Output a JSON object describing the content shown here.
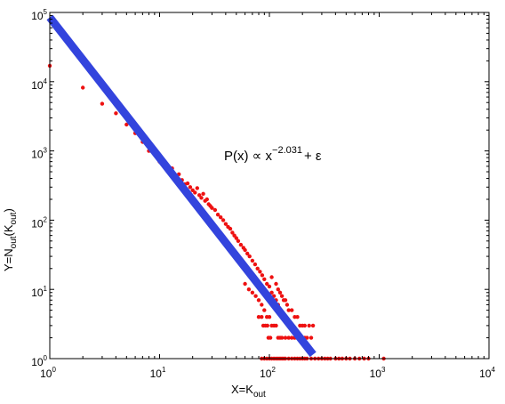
{
  "chart_data": {
    "type": "scatter",
    "title": "",
    "xlabel": {
      "base": "X=K",
      "sub": "out"
    },
    "ylabel": {
      "prefix": "Y=N",
      "sub1": "out",
      "mid": "(K",
      "sub2": "out",
      "suffix": ")"
    },
    "x_scale": "log",
    "y_scale": "log",
    "xlim": [
      1,
      10000
    ],
    "ylim": [
      1,
      100000
    ],
    "grid": false,
    "legend": "none",
    "x_ticks": [
      {
        "value": 1,
        "base": "10",
        "exp": "0"
      },
      {
        "value": 10,
        "base": "10",
        "exp": "1"
      },
      {
        "value": 100,
        "base": "10",
        "exp": "2"
      },
      {
        "value": 1000,
        "base": "10",
        "exp": "3"
      },
      {
        "value": 10000,
        "base": "10",
        "exp": "4"
      }
    ],
    "y_ticks": [
      {
        "value": 1,
        "base": "10",
        "exp": "0"
      },
      {
        "value": 10,
        "base": "10",
        "exp": "1"
      },
      {
        "value": 100,
        "base": "10",
        "exp": "2"
      },
      {
        "value": 1000,
        "base": "10",
        "exp": "3"
      },
      {
        "value": 10000,
        "base": "10",
        "exp": "4"
      },
      {
        "value": 100000,
        "base": "10",
        "exp": "5"
      }
    ],
    "annotation": {
      "lhs": "P(x) ∝ x",
      "exp": "−2.031",
      "rhs": "+ ε"
    },
    "fit_line": {
      "color": "#3344dd",
      "exponent": -2.031,
      "x_range": [
        1,
        250
      ],
      "y_at_1": 85000
    },
    "points_color": "#ee1111",
    "points": [
      [
        1,
        17000
      ],
      [
        2,
        8200
      ],
      [
        3,
        4800
      ],
      [
        4,
        3500
      ],
      [
        5,
        2400
      ],
      [
        6,
        1800
      ],
      [
        7,
        1350
      ],
      [
        8,
        1000
      ],
      [
        10,
        700
      ],
      [
        12,
        520
      ],
      [
        13,
        560
      ],
      [
        14,
        400
      ],
      [
        15,
        460
      ],
      [
        16,
        380
      ],
      [
        17,
        330
      ],
      [
        18,
        340
      ],
      [
        19,
        300
      ],
      [
        20,
        270
      ],
      [
        21,
        250
      ],
      [
        22,
        290
      ],
      [
        23,
        230
      ],
      [
        24,
        210
      ],
      [
        25,
        240
      ],
      [
        26,
        190
      ],
      [
        27,
        200
      ],
      [
        28,
        170
      ],
      [
        29,
        160
      ],
      [
        30,
        150
      ],
      [
        32,
        140
      ],
      [
        34,
        120
      ],
      [
        36,
        110
      ],
      [
        38,
        100
      ],
      [
        40,
        88
      ],
      [
        42,
        80
      ],
      [
        44,
        75
      ],
      [
        46,
        66
      ],
      [
        48,
        60
      ],
      [
        50,
        55
      ],
      [
        52,
        50
      ],
      [
        55,
        44
      ],
      [
        58,
        40
      ],
      [
        60,
        37
      ],
      [
        63,
        33
      ],
      [
        66,
        30
      ],
      [
        70,
        26
      ],
      [
        74,
        23
      ],
      [
        78,
        20
      ],
      [
        82,
        18
      ],
      [
        86,
        16
      ],
      [
        90,
        14
      ],
      [
        95,
        12
      ],
      [
        100,
        11
      ],
      [
        105,
        9
      ],
      [
        110,
        8
      ],
      [
        115,
        7
      ],
      [
        120,
        6
      ],
      [
        60,
        12
      ],
      [
        65,
        10
      ],
      [
        70,
        9
      ],
      [
        75,
        8
      ],
      [
        80,
        7
      ],
      [
        85,
        6
      ],
      [
        90,
        5
      ],
      [
        95,
        4
      ],
      [
        100,
        4
      ],
      [
        105,
        3
      ],
      [
        110,
        3
      ],
      [
        115,
        3
      ],
      [
        120,
        2
      ],
      [
        125,
        2
      ],
      [
        130,
        2
      ],
      [
        140,
        2
      ],
      [
        150,
        2
      ],
      [
        160,
        2
      ],
      [
        170,
        2
      ],
      [
        180,
        2
      ],
      [
        190,
        2
      ],
      [
        200,
        2
      ],
      [
        210,
        2
      ],
      [
        220,
        2
      ],
      [
        240,
        2
      ],
      [
        80,
        4
      ],
      [
        85,
        4
      ],
      [
        88,
        3
      ],
      [
        92,
        3
      ],
      [
        96,
        3
      ],
      [
        98,
        2
      ],
      [
        102,
        2
      ],
      [
        105,
        15
      ],
      [
        115,
        12
      ],
      [
        120,
        10
      ],
      [
        125,
        9
      ],
      [
        130,
        8
      ],
      [
        135,
        7
      ],
      [
        140,
        7
      ],
      [
        145,
        6
      ],
      [
        150,
        5
      ],
      [
        160,
        5
      ],
      [
        170,
        4
      ],
      [
        180,
        4
      ],
      [
        190,
        3
      ],
      [
        200,
        3
      ],
      [
        210,
        3
      ],
      [
        230,
        3
      ],
      [
        250,
        3
      ],
      [
        85,
        1
      ],
      [
        90,
        1
      ],
      [
        95,
        1
      ],
      [
        100,
        1
      ],
      [
        105,
        1
      ],
      [
        110,
        1
      ],
      [
        115,
        1
      ],
      [
        120,
        1
      ],
      [
        125,
        1
      ],
      [
        130,
        1
      ],
      [
        135,
        1
      ],
      [
        140,
        1
      ],
      [
        150,
        1
      ],
      [
        160,
        1
      ],
      [
        170,
        1
      ],
      [
        180,
        1
      ],
      [
        190,
        1
      ],
      [
        200,
        1
      ],
      [
        210,
        1
      ],
      [
        220,
        1
      ],
      [
        240,
        1
      ],
      [
        260,
        1
      ],
      [
        280,
        1
      ],
      [
        300,
        1
      ],
      [
        320,
        1
      ],
      [
        340,
        1
      ],
      [
        360,
        1
      ],
      [
        400,
        1
      ],
      [
        430,
        1
      ],
      [
        460,
        1
      ],
      [
        500,
        1
      ],
      [
        540,
        1
      ],
      [
        600,
        1
      ],
      [
        660,
        1
      ],
      [
        730,
        1
      ],
      [
        800,
        1
      ],
      [
        1100,
        1
      ]
    ]
  }
}
